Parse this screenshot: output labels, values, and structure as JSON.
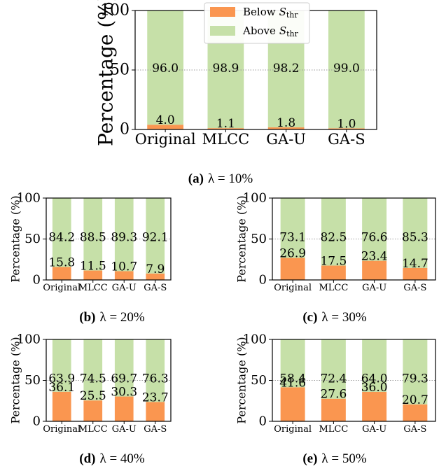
{
  "colors": {
    "below": "#fa9650",
    "above": "#c6e0a8",
    "grid": "#9a9a9a"
  },
  "legend": {
    "below_label": "Below",
    "above_label": "Above",
    "sub_symbol": "S",
    "sub_text": "thr"
  },
  "chart_data": [
    {
      "type": "bar",
      "stacked": true,
      "panel": "(a)",
      "caption_value": "λ = 10%",
      "ylabel": "Percentage (%)",
      "ylim": [
        0,
        100
      ],
      "yticks": [
        "0",
        "50",
        "100"
      ],
      "grid_line_at": 50,
      "legend_position": "top-center",
      "categories": [
        "Original",
        "MLCC",
        "GA-U",
        "GA-S"
      ],
      "series": [
        {
          "name": "Below S_thr",
          "values": [
            4.0,
            1.1,
            1.8,
            1.0
          ],
          "labels": [
            "4.0",
            "1.1",
            "1.8",
            "1.0"
          ]
        },
        {
          "name": "Above S_thr",
          "values": [
            96.0,
            98.9,
            98.2,
            99.0
          ],
          "labels": [
            "96.0",
            "98.9",
            "98.2",
            "99.0"
          ]
        }
      ]
    },
    {
      "type": "bar",
      "stacked": true,
      "panel": "(b)",
      "caption_value": "λ = 20%",
      "ylabel": "Percentage (%)",
      "ylim": [
        0,
        100
      ],
      "yticks": [
        "0",
        "50",
        "100"
      ],
      "grid_line_at": 50,
      "categories": [
        "Original",
        "MLCC",
        "GA-U",
        "GA-S"
      ],
      "series": [
        {
          "name": "Below S_thr",
          "values": [
            15.8,
            11.5,
            10.7,
            7.9
          ],
          "labels": [
            "15.8",
            "11.5",
            "10.7",
            "7.9"
          ]
        },
        {
          "name": "Above S_thr",
          "values": [
            84.2,
            88.5,
            89.3,
            92.1
          ],
          "labels": [
            "84.2",
            "88.5",
            "89.3",
            "92.1"
          ]
        }
      ]
    },
    {
      "type": "bar",
      "stacked": true,
      "panel": "(c)",
      "caption_value": "λ = 30%",
      "ylabel": "Percentage (%)",
      "ylim": [
        0,
        100
      ],
      "yticks": [
        "0",
        "50",
        "100"
      ],
      "grid_line_at": 50,
      "categories": [
        "Original",
        "MLCC",
        "GA-U",
        "GA-S"
      ],
      "series": [
        {
          "name": "Below S_thr",
          "values": [
            26.9,
            17.5,
            23.4,
            14.7
          ],
          "labels": [
            "26.9",
            "17.5",
            "23.4",
            "14.7"
          ]
        },
        {
          "name": "Above S_thr",
          "values": [
            73.1,
            82.5,
            76.6,
            85.3
          ],
          "labels": [
            "73.1",
            "82.5",
            "76.6",
            "85.3"
          ]
        }
      ]
    },
    {
      "type": "bar",
      "stacked": true,
      "panel": "(d)",
      "caption_value": "λ = 40%",
      "ylabel": "Percentage (%)",
      "ylim": [
        0,
        100
      ],
      "yticks": [
        "0",
        "50",
        "100"
      ],
      "grid_line_at": 50,
      "categories": [
        "Original",
        "MLCC",
        "GA-U",
        "GA-S"
      ],
      "series": [
        {
          "name": "Below S_thr",
          "values": [
            36.1,
            25.5,
            30.3,
            23.7
          ],
          "labels": [
            "36.1",
            "25.5",
            "30.3",
            "23.7"
          ]
        },
        {
          "name": "Above S_thr",
          "values": [
            63.9,
            74.5,
            69.7,
            76.3
          ],
          "labels": [
            "63.9",
            "74.5",
            "69.7",
            "76.3"
          ]
        }
      ]
    },
    {
      "type": "bar",
      "stacked": true,
      "panel": "(e)",
      "caption_value": "λ = 50%",
      "ylabel": "Percentage (%)",
      "ylim": [
        0,
        100
      ],
      "yticks": [
        "0",
        "50",
        "100"
      ],
      "grid_line_at": 50,
      "categories": [
        "Original",
        "MLCC",
        "GA-U",
        "GA-S"
      ],
      "series": [
        {
          "name": "Below S_thr",
          "values": [
            41.6,
            27.6,
            36.0,
            20.7
          ],
          "labels": [
            "41.6",
            "27.6",
            "36.0",
            "20.7"
          ]
        },
        {
          "name": "Above S_thr",
          "values": [
            58.4,
            72.4,
            64.0,
            79.3
          ],
          "labels": [
            "58.4",
            "72.4",
            "64.0",
            "79.3"
          ]
        }
      ]
    }
  ]
}
